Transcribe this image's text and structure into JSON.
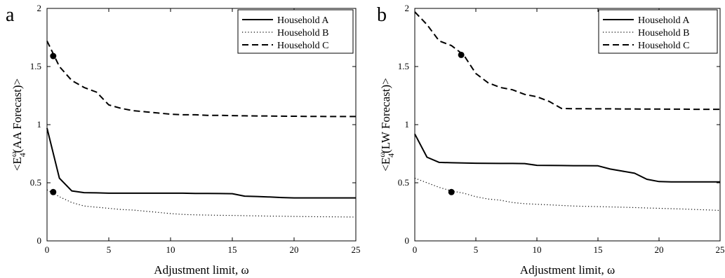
{
  "chart_data": [
    {
      "type": "line",
      "panel_label": "a",
      "xlabel": "Adjustment limit, ω",
      "ylabel": {
        "prefix": "<E",
        "sup": "ω",
        "sub": "4",
        "suffix": "(AA Forecast)>"
      },
      "xlim": [
        0,
        25
      ],
      "ylim": [
        0,
        2
      ],
      "xticks": [
        0,
        5,
        10,
        15,
        20,
        25
      ],
      "yticks": [
        0,
        0.5,
        1,
        1.5,
        2
      ],
      "ytick_labels": [
        "0",
        "0.5",
        "1",
        "1.5",
        "2"
      ],
      "grid": false,
      "legend_position": "top-right",
      "series": [
        {
          "name": "Household A",
          "style": "solid",
          "color": "#000000",
          "x": [
            0,
            1,
            2,
            3,
            4,
            5,
            6,
            7,
            8,
            9,
            10,
            11,
            12,
            13,
            14,
            15,
            16,
            17,
            18,
            19,
            20,
            21,
            22,
            23,
            24,
            25
          ],
          "y": [
            0.97,
            0.54,
            0.43,
            0.415,
            0.413,
            0.41,
            0.41,
            0.41,
            0.41,
            0.41,
            0.41,
            0.41,
            0.408,
            0.408,
            0.407,
            0.406,
            0.385,
            0.382,
            0.378,
            0.373,
            0.37,
            0.37,
            0.37,
            0.37,
            0.37,
            0.37
          ]
        },
        {
          "name": "Household B",
          "style": "dotted",
          "color": "#000000",
          "x": [
            0,
            1,
            2,
            3,
            4,
            5,
            6,
            7,
            8,
            9,
            10,
            11,
            12,
            13,
            14,
            15,
            16,
            17,
            18,
            19,
            20,
            21,
            22,
            23,
            24,
            25
          ],
          "y": [
            0.44,
            0.38,
            0.33,
            0.3,
            0.29,
            0.28,
            0.27,
            0.265,
            0.255,
            0.245,
            0.235,
            0.228,
            0.224,
            0.222,
            0.22,
            0.219,
            0.217,
            0.215,
            0.213,
            0.212,
            0.21,
            0.209,
            0.208,
            0.207,
            0.206,
            0.205
          ]
        },
        {
          "name": "Household C",
          "style": "dashed",
          "color": "#000000",
          "x": [
            0,
            1,
            2,
            3,
            4,
            5,
            6,
            7,
            8,
            9,
            10,
            11,
            12,
            13,
            14,
            15,
            16,
            17,
            18,
            19,
            20,
            21,
            22,
            23,
            24,
            25
          ],
          "y": [
            1.72,
            1.5,
            1.38,
            1.32,
            1.28,
            1.17,
            1.14,
            1.12,
            1.11,
            1.1,
            1.09,
            1.085,
            1.085,
            1.08,
            1.08,
            1.078,
            1.076,
            1.075,
            1.074,
            1.073,
            1.072,
            1.071,
            1.071,
            1.07,
            1.07,
            1.07
          ]
        }
      ],
      "markers": [
        {
          "x": 0.5,
          "y": 1.59
        },
        {
          "x": 0.5,
          "y": 0.42
        }
      ]
    },
    {
      "type": "line",
      "panel_label": "b",
      "xlabel": "Adjustment limit, ω",
      "ylabel": {
        "prefix": "<E",
        "sup": "ω",
        "sub": "4",
        "suffix": "(LW Forecast)>"
      },
      "xlim": [
        0,
        25
      ],
      "ylim": [
        0,
        2
      ],
      "xticks": [
        0,
        5,
        10,
        15,
        20,
        25
      ],
      "yticks": [
        0,
        0.5,
        1,
        1.5,
        2
      ],
      "ytick_labels": [
        "0",
        "0.5",
        "1",
        "1.5",
        "2"
      ],
      "grid": false,
      "legend_position": "top-right",
      "series": [
        {
          "name": "Household A",
          "style": "solid",
          "color": "#000000",
          "x": [
            0,
            1,
            2,
            3,
            4,
            5,
            6,
            7,
            8,
            9,
            10,
            11,
            12,
            13,
            14,
            15,
            16,
            17,
            18,
            19,
            20,
            21,
            22,
            23,
            24,
            25
          ],
          "y": [
            0.92,
            0.72,
            0.675,
            0.672,
            0.67,
            0.668,
            0.667,
            0.666,
            0.666,
            0.665,
            0.65,
            0.649,
            0.648,
            0.647,
            0.647,
            0.646,
            0.618,
            0.6,
            0.582,
            0.53,
            0.51,
            0.508,
            0.507,
            0.507,
            0.507,
            0.507
          ]
        },
        {
          "name": "Household B",
          "style": "dotted",
          "color": "#000000",
          "x": [
            0,
            1,
            2,
            3,
            4,
            5,
            6,
            7,
            8,
            9,
            10,
            11,
            12,
            13,
            14,
            15,
            16,
            17,
            18,
            19,
            20,
            21,
            22,
            23,
            24,
            25
          ],
          "y": [
            0.54,
            0.5,
            0.46,
            0.43,
            0.41,
            0.38,
            0.36,
            0.35,
            0.33,
            0.32,
            0.315,
            0.31,
            0.305,
            0.3,
            0.297,
            0.295,
            0.292,
            0.29,
            0.287,
            0.283,
            0.28,
            0.277,
            0.274,
            0.27,
            0.266,
            0.262
          ]
        },
        {
          "name": "Household C",
          "style": "dashed",
          "color": "#000000",
          "x": [
            0,
            1,
            2,
            3,
            4,
            5,
            6,
            7,
            8,
            9,
            10,
            11,
            12,
            13,
            14,
            15,
            16,
            17,
            18,
            19,
            20,
            21,
            22,
            23,
            24,
            25
          ],
          "y": [
            1.97,
            1.86,
            1.72,
            1.68,
            1.6,
            1.44,
            1.36,
            1.32,
            1.3,
            1.26,
            1.24,
            1.2,
            1.14,
            1.137,
            1.137,
            1.136,
            1.136,
            1.135,
            1.135,
            1.134,
            1.134,
            1.133,
            1.133,
            1.132,
            1.132,
            1.132
          ]
        }
      ],
      "markers": [
        {
          "x": 3.8,
          "y": 1.6
        },
        {
          "x": 3.0,
          "y": 0.42
        }
      ]
    }
  ]
}
